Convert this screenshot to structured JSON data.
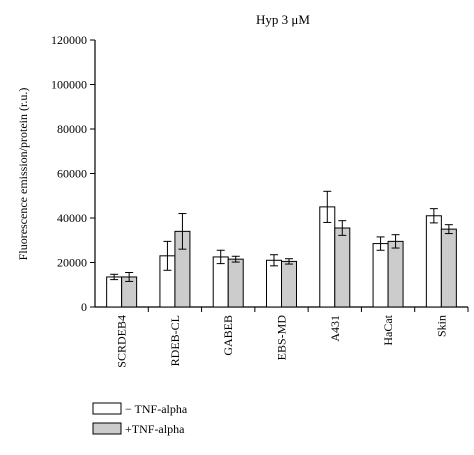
{
  "chart_data": {
    "type": "bar",
    "title": "Hyp 3 μM",
    "xlabel": "",
    "ylabel": "Fluorescence emission/protein (r.u.)",
    "ylim": [
      0,
      120000
    ],
    "yticks": [
      0,
      20000,
      40000,
      60000,
      80000,
      100000,
      120000
    ],
    "ytick_labels": [
      "0",
      "20000",
      "40000",
      "60000",
      "80000",
      "100000",
      "120000"
    ],
    "categories": [
      "SCRDEB4",
      "RDEB-CL",
      "GABEB",
      "EBS-MD",
      "A431",
      "HaCat",
      "Skin"
    ],
    "series": [
      {
        "name": "− TNF-alpha",
        "color": "#ffffff",
        "values": [
          13500,
          23000,
          22500,
          21000,
          45000,
          28500,
          41000
        ],
        "errors": [
          1200,
          6500,
          3000,
          2500,
          7000,
          3000,
          3200
        ]
      },
      {
        "name": "+TNF-alpha",
        "color": "#cccccc",
        "values": [
          13500,
          34000,
          21500,
          20500,
          35500,
          29500,
          35000
        ],
        "errors": [
          2000,
          8000,
          1300,
          1200,
          3300,
          3000,
          2000
        ]
      }
    ],
    "legend": "bottom-left",
    "grid": false
  }
}
